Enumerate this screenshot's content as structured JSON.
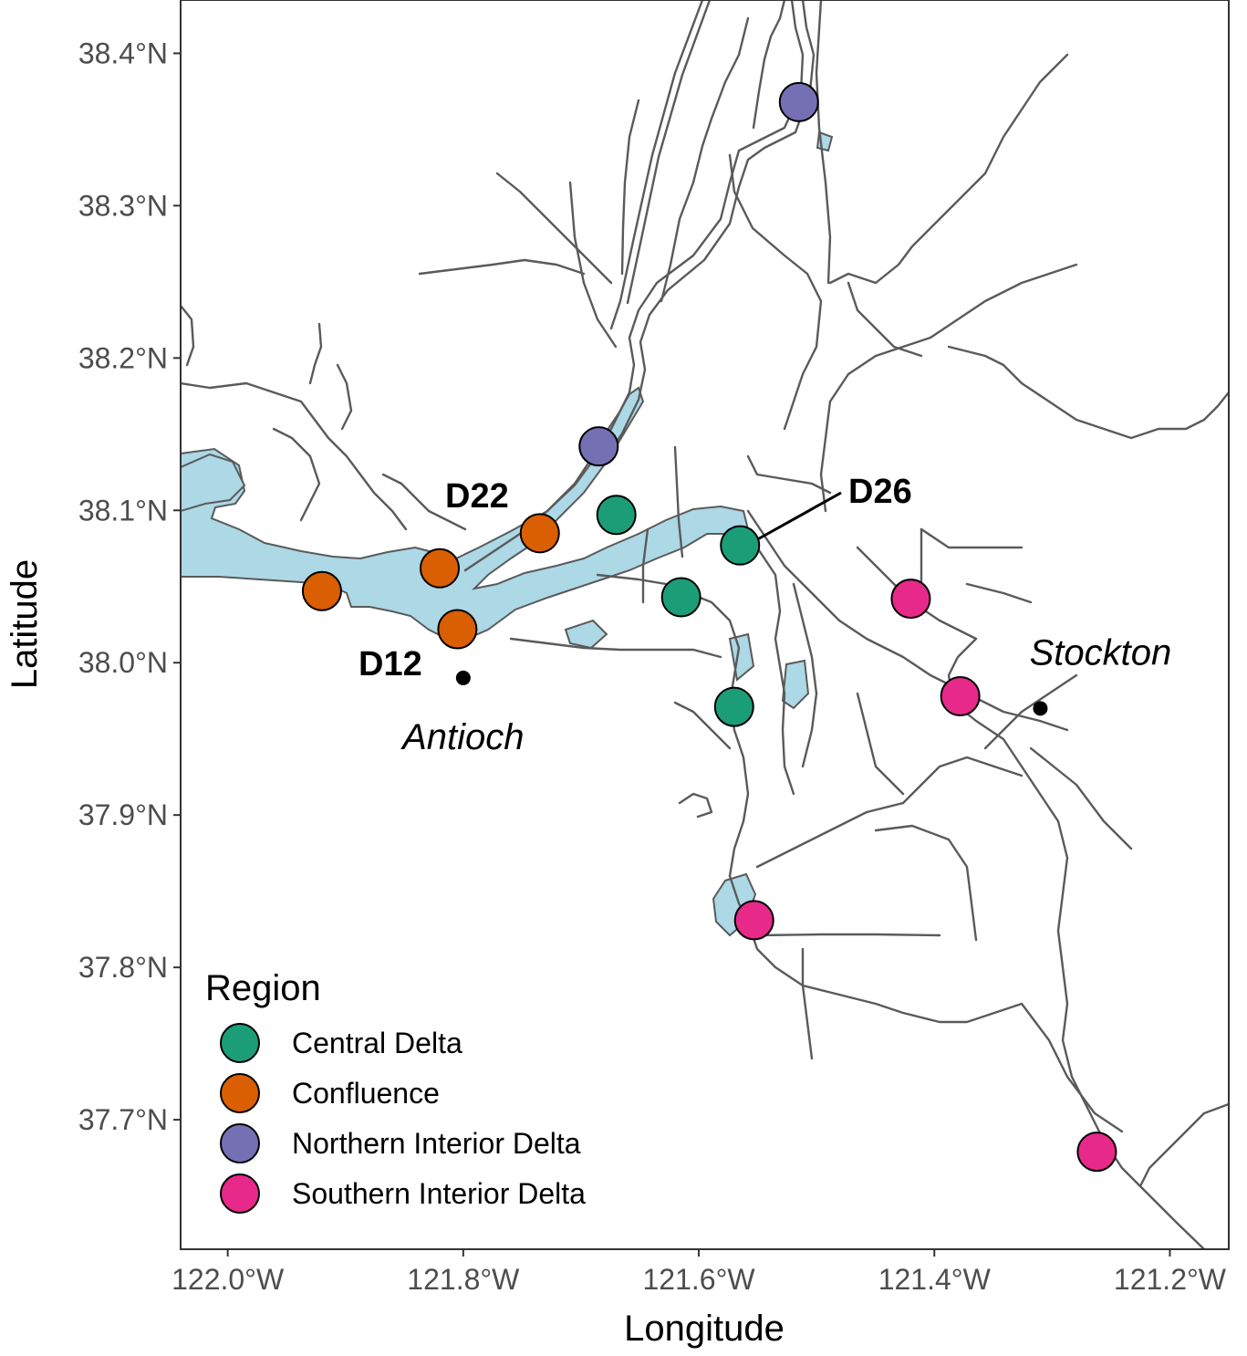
{
  "chart_data": {
    "type": "scatter",
    "xlabel": "Longitude",
    "ylabel": "Latitude",
    "xlim": [
      -122.04,
      -121.15
    ],
    "ylim": [
      37.615,
      38.435
    ],
    "x_ticks": [
      {
        "value": -122.0,
        "label": "122.0°W"
      },
      {
        "value": -121.8,
        "label": "121.8°W"
      },
      {
        "value": -121.6,
        "label": "121.6°W"
      },
      {
        "value": -121.4,
        "label": "121.4°W"
      },
      {
        "value": -121.2,
        "label": "121.2°W"
      }
    ],
    "y_ticks": [
      {
        "value": 38.4,
        "label": "38.4°N"
      },
      {
        "value": 38.3,
        "label": "38.3°N"
      },
      {
        "value": 38.2,
        "label": "38.2°N"
      },
      {
        "value": 38.1,
        "label": "38.1°N"
      },
      {
        "value": 38.0,
        "label": "38.0°N"
      },
      {
        "value": 37.9,
        "label": "37.9°N"
      },
      {
        "value": 37.8,
        "label": "37.8°N"
      },
      {
        "value": 37.7,
        "label": "37.7°N"
      }
    ],
    "legend": {
      "title": "Region",
      "position": "bottom-left",
      "entries": [
        {
          "name": "Central Delta",
          "color": "#1b9e77"
        },
        {
          "name": "Confluence",
          "color": "#d95f02"
        },
        {
          "name": "Northern Interior Delta",
          "color": "#7570b3"
        },
        {
          "name": "Southern Interior Delta",
          "color": "#e7298a"
        }
      ]
    },
    "stations": [
      {
        "lon": -121.515,
        "lat": 38.368,
        "region": "Northern Interior Delta"
      },
      {
        "lon": -121.685,
        "lat": 38.142,
        "region": "Northern Interior Delta"
      },
      {
        "lon": -121.67,
        "lat": 38.097,
        "region": "Central Delta"
      },
      {
        "lon": -121.735,
        "lat": 38.085,
        "region": "Confluence",
        "label": "D22"
      },
      {
        "lon": -121.565,
        "lat": 38.077,
        "region": "Central Delta",
        "label": "D26"
      },
      {
        "lon": -121.82,
        "lat": 38.062,
        "region": "Confluence"
      },
      {
        "lon": -121.92,
        "lat": 38.047,
        "region": "Confluence"
      },
      {
        "lon": -121.615,
        "lat": 38.043,
        "region": "Central Delta"
      },
      {
        "lon": -121.42,
        "lat": 38.042,
        "region": "Southern Interior Delta"
      },
      {
        "lon": -121.805,
        "lat": 38.022,
        "region": "Confluence",
        "label": "D12"
      },
      {
        "lon": -121.378,
        "lat": 37.978,
        "region": "Southern Interior Delta"
      },
      {
        "lon": -121.57,
        "lat": 37.971,
        "region": "Central Delta"
      },
      {
        "lon": -121.553,
        "lat": 37.831,
        "region": "Southern Interior Delta"
      },
      {
        "lon": -121.262,
        "lat": 37.679,
        "region": "Southern Interior Delta"
      }
    ],
    "cities": [
      {
        "name": "Antioch",
        "lon": -121.8,
        "lat": 37.99
      },
      {
        "name": "Stockton",
        "lon": -121.31,
        "lat": 37.97
      }
    ]
  }
}
